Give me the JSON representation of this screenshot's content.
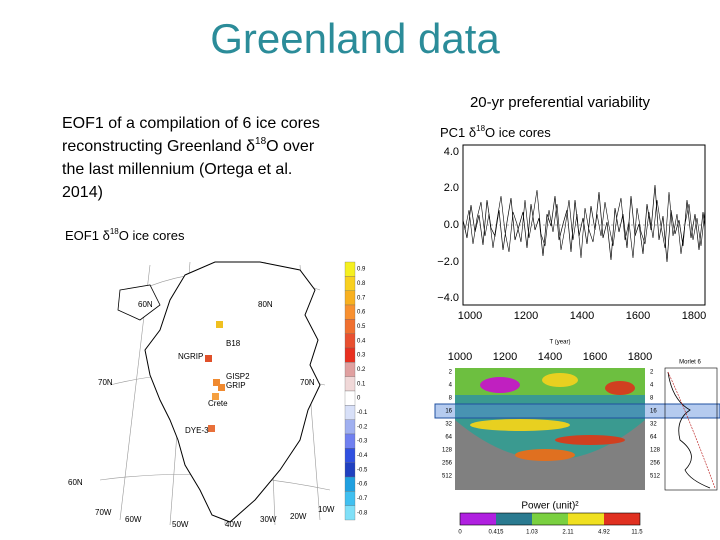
{
  "title": "Greenland data",
  "subtitle": "20-yr preferential variability",
  "description": {
    "line1": "EOF1 of a compilation of 6 ice cores",
    "line2_pre": "reconstructing Greenland  δ",
    "line2_sup": "18",
    "line2_post": "O over",
    "line3": "the last millennium (Ortega et al.",
    "line4": "2014)"
  },
  "map": {
    "label_pre": "EOF1 δ",
    "label_sup": "18",
    "label_post": "O ice cores",
    "sites": [
      "B18",
      "NGRIP",
      "GISP2",
      "GRIP",
      "Crete",
      "DYE-3"
    ],
    "grid_labels": [
      "60N",
      "80N",
      "70N",
      "70N",
      "60N",
      "70W",
      "60W",
      "50W",
      "40W",
      "30W",
      "20W",
      "10W"
    ],
    "colorbar_labels": [
      "0.9",
      "0.8",
      "0.7",
      "0.6",
      "0.5",
      "0.4",
      "0.3",
      "0.2",
      "0.1",
      "0",
      "-0.1",
      "-0.2",
      "-0.3",
      "-0.4",
      "-0.5",
      "-0.6",
      "-0.7",
      "-0.8"
    ]
  },
  "timeseries": {
    "label_pre": "PC1 δ",
    "label_sup": "18",
    "label_post": "O ice cores",
    "yticks": [
      "4.0",
      "2.0",
      "0.0",
      "−2.0",
      "−4.0"
    ],
    "xticks": [
      "1000",
      "1200",
      "1400",
      "1600",
      "1800"
    ]
  },
  "wavelet": {
    "xticks": [
      "1000",
      "1200",
      "1400",
      "1600",
      "1800"
    ],
    "xlabel": "T (year)",
    "periods": [
      "2",
      "4",
      "8",
      "16",
      "32",
      "64",
      "128",
      "256",
      "512"
    ],
    "right_periods": [
      "2",
      "4",
      "8",
      "16",
      "32",
      "64",
      "128",
      "256",
      "512"
    ],
    "method": "Morlet 6",
    "power_label": "Power (unit)²",
    "power_levels": [
      "0",
      "0.415",
      "1.03",
      "2.11",
      "4.92",
      "11.5"
    ]
  }
}
